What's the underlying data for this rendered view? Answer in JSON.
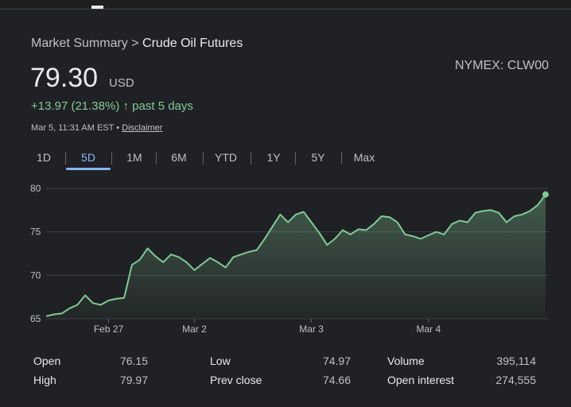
{
  "breadcrumb": {
    "parent": "Market Summary",
    "separator": ">",
    "current": "Crude Oil Futures"
  },
  "exchange": "NYMEX: CLW00",
  "price": {
    "value": "79.30",
    "currency": "USD"
  },
  "change": {
    "text": "+13.97 (21.38%)",
    "arrow": "↑",
    "period": "past 5 days"
  },
  "timestamp": {
    "text": "Mar 5, 11:31 AM EST",
    "separator": "•",
    "link": "Disclaimer"
  },
  "tabs": [
    "1D",
    "5D",
    "1M",
    "6M",
    "YTD",
    "1Y",
    "5Y",
    "Max"
  ],
  "selected_tab": "5D",
  "chart_data": {
    "type": "line",
    "categories": [
      null,
      null,
      null,
      null,
      null,
      null,
      null,
      null,
      "Feb 27",
      null,
      null,
      null,
      null,
      null,
      null,
      null,
      null,
      null,
      null,
      "Mar 2",
      null,
      null,
      null,
      null,
      null,
      null,
      null,
      null,
      null,
      null,
      null,
      null,
      null,
      null,
      "Mar 3",
      null,
      null,
      null,
      null,
      null,
      null,
      null,
      null,
      null,
      null,
      null,
      null,
      null,
      null,
      "Mar 4",
      null,
      null,
      null,
      null,
      null,
      null,
      null,
      null,
      null,
      null,
      null,
      null,
      null,
      null,
      null
    ],
    "series": [
      {
        "name": "Crude Oil Futures",
        "color": "#81c995",
        "values": [
          65.3,
          65.5,
          65.6,
          66.2,
          66.6,
          67.7,
          66.8,
          66.6,
          67.1,
          67.3,
          67.4,
          71.2,
          71.8,
          73.1,
          72.2,
          71.5,
          72.4,
          72.1,
          71.5,
          70.6,
          71.3,
          72,
          71.5,
          70.9,
          72.1,
          72.4,
          72.7,
          72.9,
          74.2,
          75.6,
          77,
          76.1,
          77,
          77.3,
          76.1,
          74.9,
          73.5,
          74.2,
          75.2,
          74.7,
          75.3,
          75.2,
          75.9,
          76.8,
          76.7,
          76.1,
          74.7,
          74.5,
          74.2,
          74.6,
          75,
          74.7,
          75.9,
          76.3,
          76.1,
          77.2,
          77.4,
          77.5,
          77.2,
          76.1,
          76.8,
          77,
          77.4,
          78.1,
          79.3
        ]
      }
    ],
    "ylim": [
      65,
      80
    ],
    "yticks": [
      65,
      70,
      75,
      80
    ],
    "grid": true
  },
  "stats": [
    [
      {
        "label": "Open",
        "value": "76.15"
      },
      {
        "label": "Low",
        "value": "74.97"
      },
      {
        "label": "Volume",
        "value": "395,114"
      }
    ],
    [
      {
        "label": "High",
        "value": "79.97"
      },
      {
        "label": "Prev close",
        "value": "74.66"
      },
      {
        "label": "Open interest",
        "value": "274,555"
      }
    ]
  ]
}
